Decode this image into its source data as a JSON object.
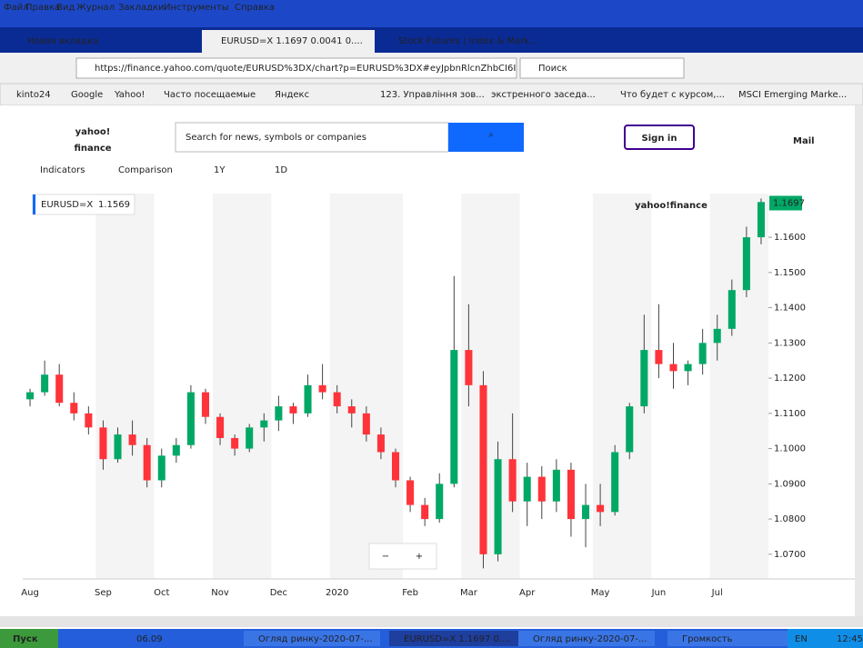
{
  "menu": [
    "Файл",
    "Правка",
    "Вид",
    "Журнал",
    "Закладки",
    "Инструменты",
    "Справка"
  ],
  "tabs": [
    "Новая вкладка",
    "EURUSD=X 1.1697 0.0041 0....",
    "Stock Futures | Index & Mark..."
  ],
  "url": "https://finance.yahoo.com/quote/EURUSD%3DX/chart?p=EURUSD%3DX#eyJpbnRlcnZhbCI6I",
  "search_placeholder": "Поиск",
  "bookmarks": [
    "kinto24",
    "Google",
    "Yahoo!",
    "Часто посещаемые",
    "Яндекс",
    "123. Управління зов...",
    "экстренного заседа...",
    "Что будет с курсом,...",
    "MSCI Emerging Marke..."
  ],
  "site": {
    "logo": "yahoo!",
    "logo_sub": "finance",
    "search": "Search for news, symbols or companies",
    "signin": "Sign in",
    "mail": "Mail"
  },
  "toolbar": [
    "Indicators",
    "Comparison",
    "1Y",
    "1D"
  ],
  "watermark": "yahoo!finance",
  "zoom": [
    "−",
    "+"
  ],
  "taskbar": {
    "start": "Пуск",
    "folder": "06.09",
    "items": [
      "Огляд ринку-2020-07-...",
      "EURUSD=X 1.1697 0....",
      "Огляд ринку-2020-07-...",
      "Громкость"
    ],
    "lang": "EN",
    "time": "12:45"
  },
  "chart_data": {
    "type": "candlestick",
    "symbol": "EURUSD=X",
    "legend_value": 1.1569,
    "last_price": 1.1697,
    "up_color": "#00a866",
    "down_color": "#ff333a",
    "grid": false,
    "categories": [
      "Aug",
      null,
      null,
      null,
      null,
      "Sep",
      null,
      null,
      null,
      "Oct",
      null,
      null,
      null,
      "Nov",
      null,
      null,
      null,
      "Dec",
      null,
      null,
      null,
      "2020",
      null,
      null,
      null,
      null,
      "Feb",
      null,
      null,
      null,
      "Mar",
      null,
      null,
      null,
      "Apr",
      null,
      null,
      null,
      null,
      "May",
      null,
      null,
      null,
      "Jun",
      null,
      null,
      null,
      "Jul",
      null,
      null,
      null
    ],
    "open": [
      1.114,
      1.116,
      1.121,
      1.113,
      1.11,
      1.106,
      1.097,
      1.104,
      1.101,
      1.091,
      1.098,
      1.101,
      1.116,
      1.109,
      1.103,
      1.1,
      1.106,
      1.108,
      1.112,
      1.11,
      1.118,
      1.116,
      1.112,
      1.11,
      1.104,
      1.099,
      1.091,
      1.084,
      1.08,
      1.09,
      1.128,
      1.118,
      1.07,
      1.097,
      1.085,
      1.092,
      1.085,
      1.094,
      1.08,
      1.084,
      1.082,
      1.099,
      1.112,
      1.128,
      1.124,
      1.122,
      1.124,
      1.13,
      1.134,
      1.145,
      1.16
    ],
    "high": [
      1.117,
      1.125,
      1.124,
      1.116,
      1.112,
      1.108,
      1.106,
      1.108,
      1.103,
      1.1,
      1.103,
      1.118,
      1.117,
      1.11,
      1.104,
      1.107,
      1.11,
      1.115,
      1.113,
      1.121,
      1.124,
      1.118,
      1.114,
      1.112,
      1.106,
      1.1,
      1.092,
      1.086,
      1.093,
      1.149,
      1.141,
      1.122,
      1.102,
      1.11,
      1.096,
      1.095,
      1.097,
      1.096,
      1.09,
      1.09,
      1.101,
      1.113,
      1.138,
      1.141,
      1.13,
      1.125,
      1.134,
      1.138,
      1.148,
      1.163,
      1.171
    ],
    "low": [
      1.112,
      1.115,
      1.112,
      1.108,
      1.104,
      1.094,
      1.096,
      1.098,
      1.089,
      1.089,
      1.096,
      1.1,
      1.107,
      1.101,
      1.098,
      1.099,
      1.102,
      1.105,
      1.107,
      1.109,
      1.114,
      1.11,
      1.106,
      1.102,
      1.097,
      1.089,
      1.082,
      1.078,
      1.079,
      1.089,
      1.112,
      1.066,
      1.068,
      1.082,
      1.078,
      1.08,
      1.082,
      1.075,
      1.072,
      1.078,
      1.081,
      1.097,
      1.11,
      1.12,
      1.117,
      1.118,
      1.121,
      1.125,
      1.132,
      1.143,
      1.158
    ],
    "close": [
      1.116,
      1.121,
      1.113,
      1.11,
      1.106,
      1.097,
      1.104,
      1.101,
      1.091,
      1.098,
      1.101,
      1.116,
      1.109,
      1.103,
      1.1,
      1.106,
      1.108,
      1.112,
      1.11,
      1.118,
      1.116,
      1.112,
      1.11,
      1.104,
      1.099,
      1.091,
      1.084,
      1.08,
      1.09,
      1.128,
      1.118,
      1.07,
      1.097,
      1.085,
      1.092,
      1.085,
      1.094,
      1.08,
      1.084,
      1.082,
      1.099,
      1.112,
      1.128,
      1.124,
      1.122,
      1.124,
      1.13,
      1.134,
      1.145,
      1.16,
      1.17
    ],
    "ylim": [
      1.063,
      1.1724
    ],
    "yticks": [
      {
        "value": 1.07,
        "label": "1.0700"
      },
      {
        "value": 1.08,
        "label": "1.0800"
      },
      {
        "value": 1.09,
        "label": "1.0900"
      },
      {
        "value": 1.1,
        "label": "1.1000"
      },
      {
        "value": 1.11,
        "label": "1.1100"
      },
      {
        "value": 1.12,
        "label": "1.1200"
      },
      {
        "value": 1.13,
        "label": "1.1300"
      },
      {
        "value": 1.14,
        "label": "1.1400"
      },
      {
        "value": 1.15,
        "label": "1.1500"
      },
      {
        "value": 1.16,
        "label": "1.1600"
      }
    ]
  }
}
